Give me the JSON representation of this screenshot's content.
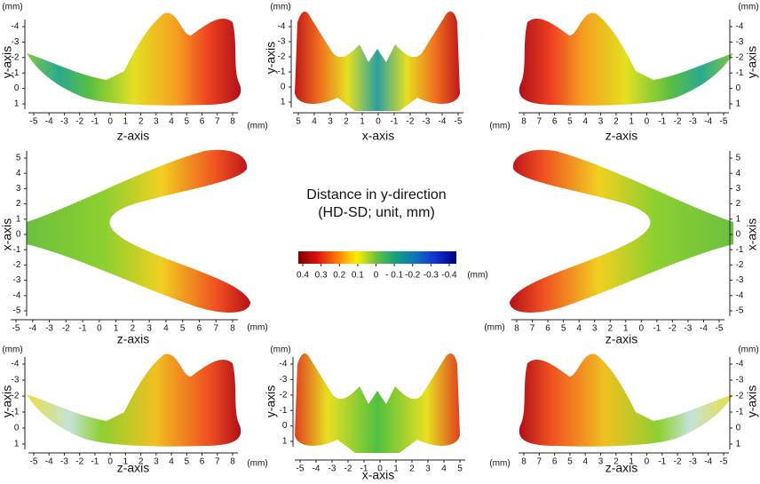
{
  "panels": [
    {
      "ylabel": "y-axis",
      "xlabel": "z-axis",
      "yunit": "(mm)",
      "xunit": "(mm)",
      "yticks": [
        -4,
        -3,
        -2,
        -1,
        0,
        1
      ],
      "xticks": [
        -5,
        -4,
        -3,
        -2,
        -1,
        0,
        1,
        2,
        3,
        4,
        5,
        6,
        7,
        8
      ]
    },
    {
      "ylabel": "y-axis",
      "xlabel": "x-axis",
      "yunit": "(mm)",
      "yticks": [
        -4,
        -3,
        -2,
        -1,
        0,
        1
      ],
      "xticks": [
        5,
        4,
        3,
        2,
        1,
        0,
        -1,
        -2,
        -3,
        -4,
        -5
      ]
    },
    {
      "ylabel": "y-axis",
      "xlabel": "z-axis",
      "yunit": "(mm)",
      "xunit": "(mm)",
      "yticks": [
        -4,
        -3,
        -2,
        -1,
        0,
        1
      ],
      "xticks": [
        8,
        7,
        6,
        5,
        4,
        3,
        2,
        1,
        0,
        -1,
        -2,
        -3,
        -4,
        -5
      ]
    },
    {
      "ylabel": "x-axis",
      "xlabel": "z-axis",
      "xunit": "(mm)",
      "yticks": [
        5,
        4,
        3,
        2,
        1,
        0,
        -1,
        -2,
        -3,
        -4,
        -5
      ],
      "xticks": [
        -5,
        -4,
        -3,
        -2,
        -1,
        0,
        1,
        2,
        3,
        4,
        5,
        6,
        7,
        8
      ]
    },
    {
      "ylabel": "x-axis",
      "xlabel": "z-axis",
      "xunit": "(mm)",
      "yticks": [
        5,
        4,
        3,
        2,
        1,
        0,
        -1,
        -2,
        -3,
        -4,
        -5
      ],
      "xticks": [
        8,
        7,
        6,
        5,
        4,
        3,
        2,
        1,
        0,
        -1,
        -2,
        -3,
        -4,
        -5
      ]
    },
    {
      "ylabel": "y-axis",
      "xlabel": "z-axis",
      "yunit": "(mm)",
      "xunit": "(mm)",
      "yticks": [
        -4,
        -3,
        -2,
        -1,
        0,
        1
      ],
      "xticks": [
        -5,
        -4,
        -3,
        -2,
        -1,
        0,
        1,
        2,
        3,
        4,
        5,
        6,
        7,
        8
      ]
    },
    {
      "ylabel": "y-axis",
      "xlabel": "x-axis",
      "yunit": "(mm)",
      "yticks": [
        -4,
        -3,
        -2,
        -1,
        0,
        1
      ],
      "xticks": [
        -5,
        -4,
        -3,
        -2,
        -1,
        0,
        1,
        2,
        3,
        4,
        5
      ]
    },
    {
      "ylabel": "y-axis",
      "xlabel": "z-axis",
      "yunit": "(mm)",
      "xunit": "(mm)",
      "yticks": [
        -4,
        -3,
        -2,
        -1,
        0,
        1
      ],
      "xticks": [
        8,
        7,
        6,
        5,
        4,
        3,
        2,
        1,
        0,
        -1,
        -2,
        -3,
        -4,
        -5
      ]
    }
  ],
  "colorbar": {
    "title": [
      "Distance in y-direction",
      "(HD-SD;  unit, mm)"
    ],
    "ticks": [
      0.4,
      0.3,
      0.2,
      0.1,
      0,
      {
        "value": -0.1,
        "label": "- 0.1"
      },
      -0.2,
      -0.3,
      -0.4
    ],
    "unit": "(mm)"
  }
}
